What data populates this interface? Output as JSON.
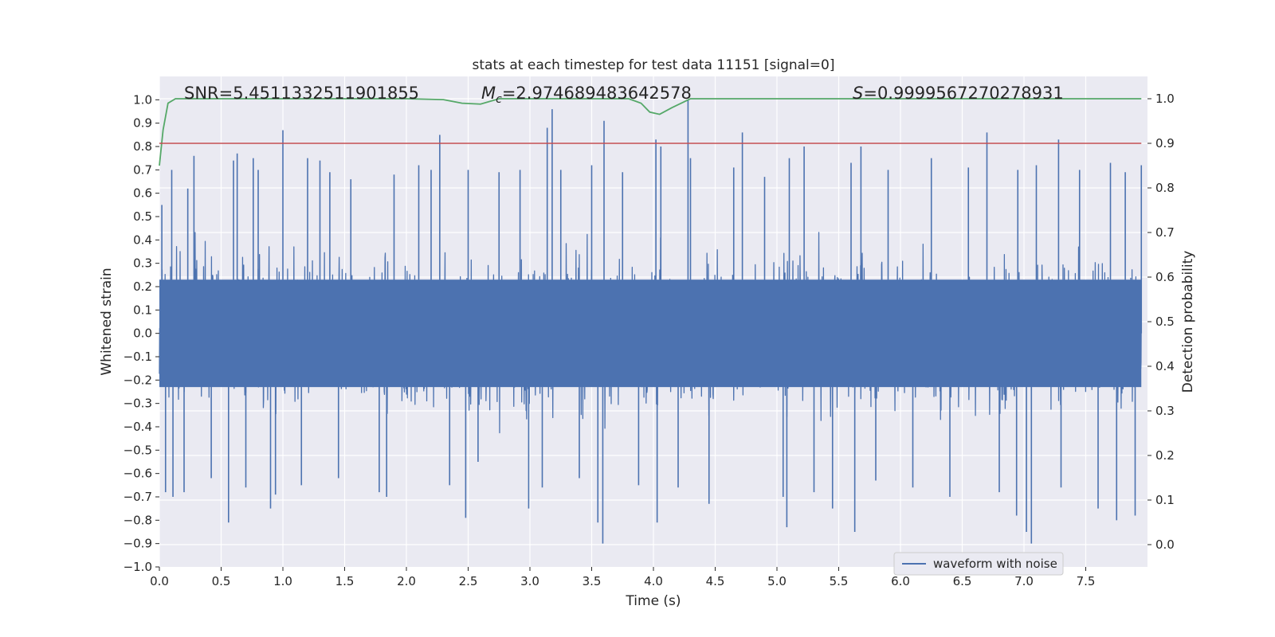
{
  "chart_data": {
    "type": "line",
    "title": "stats at each timestep for test data 11151 [signal=0]",
    "xlabel": "Time (s)",
    "ylabel": "Whitened strain",
    "y2label": "Detection probability",
    "xlim": [
      0,
      8
    ],
    "ylim": [
      -1.0,
      1.1
    ],
    "y2lim": [
      -0.05,
      1.05
    ],
    "x_ticks": [
      "0.0",
      "0.5",
      "1.0",
      "1.5",
      "2.0",
      "2.5",
      "3.0",
      "3.5",
      "4.0",
      "4.5",
      "5.0",
      "5.5",
      "6.0",
      "6.5",
      "7.0",
      "7.5"
    ],
    "y_ticks": [
      "1.0",
      "0.9",
      "0.8",
      "0.7",
      "0.6",
      "0.5",
      "0.4",
      "0.3",
      "0.2",
      "0.1",
      "0.0",
      "−0.1",
      "−0.2",
      "−0.3",
      "−0.4",
      "−0.5",
      "−0.6",
      "−0.7",
      "−0.8",
      "−0.9",
      "−1.0"
    ],
    "y2_ticks": [
      "1.0",
      "0.9",
      "0.8",
      "0.7",
      "0.6",
      "0.5",
      "0.4",
      "0.3",
      "0.2",
      "0.1",
      "0.0"
    ],
    "annotations": {
      "snr": "SNR=5.4511332511901855",
      "mc_symbol": "M",
      "mc_sub": "c",
      "mc_value": "=2.974689483642578",
      "s_symbol": "S",
      "s_value": "=0.9999567270278931"
    },
    "threshold": 0.9,
    "legend": {
      "label": "waveform with noise",
      "placement": "lower-right"
    },
    "series": [
      {
        "name": "waveform with noise",
        "axis": "left",
        "color": "#4c72b0",
        "envelope": "dense noise, roughly ±0.45 with spikes",
        "spikes": [
          {
            "x": 0.02,
            "y": 0.55
          },
          {
            "x": 0.05,
            "y": -0.68
          },
          {
            "x": 0.1,
            "y": 0.7
          },
          {
            "x": 0.11,
            "y": -0.7
          },
          {
            "x": 0.2,
            "y": -0.68
          },
          {
            "x": 0.23,
            "y": 0.62
          },
          {
            "x": 0.28,
            "y": 0.76
          },
          {
            "x": 0.42,
            "y": -0.62
          },
          {
            "x": 0.56,
            "y": -0.81
          },
          {
            "x": 0.6,
            "y": 0.74
          },
          {
            "x": 0.63,
            "y": 0.77
          },
          {
            "x": 0.7,
            "y": -0.66
          },
          {
            "x": 0.76,
            "y": 0.75
          },
          {
            "x": 0.8,
            "y": 0.7
          },
          {
            "x": 0.9,
            "y": -0.75
          },
          {
            "x": 0.94,
            "y": -0.69
          },
          {
            "x": 1.0,
            "y": 0.87
          },
          {
            "x": 1.15,
            "y": -0.65
          },
          {
            "x": 1.2,
            "y": 0.75
          },
          {
            "x": 1.3,
            "y": 0.74
          },
          {
            "x": 1.38,
            "y": 0.69
          },
          {
            "x": 1.45,
            "y": -0.62
          },
          {
            "x": 1.55,
            "y": 0.66
          },
          {
            "x": 1.78,
            "y": -0.68
          },
          {
            "x": 1.84,
            "y": -0.7
          },
          {
            "x": 1.9,
            "y": 0.68
          },
          {
            "x": 2.1,
            "y": 0.72
          },
          {
            "x": 2.2,
            "y": 0.7
          },
          {
            "x": 2.27,
            "y": 0.85
          },
          {
            "x": 2.35,
            "y": -0.65
          },
          {
            "x": 2.48,
            "y": -0.79
          },
          {
            "x": 2.5,
            "y": 0.7
          },
          {
            "x": 2.58,
            "y": -0.55
          },
          {
            "x": 2.75,
            "y": 0.69
          },
          {
            "x": 2.92,
            "y": 0.7
          },
          {
            "x": 2.99,
            "y": -0.75
          },
          {
            "x": 3.1,
            "y": -0.66
          },
          {
            "x": 3.14,
            "y": 0.88
          },
          {
            "x": 3.18,
            "y": 0.96
          },
          {
            "x": 3.25,
            "y": 0.7
          },
          {
            "x": 3.4,
            "y": -0.62
          },
          {
            "x": 3.5,
            "y": 0.72
          },
          {
            "x": 3.55,
            "y": -0.81
          },
          {
            "x": 3.59,
            "y": -0.9
          },
          {
            "x": 3.6,
            "y": 0.91
          },
          {
            "x": 3.75,
            "y": 0.69
          },
          {
            "x": 3.88,
            "y": -0.65
          },
          {
            "x": 4.02,
            "y": 0.83
          },
          {
            "x": 4.03,
            "y": -0.81
          },
          {
            "x": 4.06,
            "y": 0.8
          },
          {
            "x": 4.2,
            "y": -0.66
          },
          {
            "x": 4.28,
            "y": 1.0
          },
          {
            "x": 4.3,
            "y": 0.75
          },
          {
            "x": 4.45,
            "y": -0.73
          },
          {
            "x": 4.65,
            "y": 0.71
          },
          {
            "x": 4.72,
            "y": 0.86
          },
          {
            "x": 4.9,
            "y": 0.67
          },
          {
            "x": 5.05,
            "y": -0.7
          },
          {
            "x": 5.1,
            "y": 0.75
          },
          {
            "x": 5.08,
            "y": -0.83
          },
          {
            "x": 5.22,
            "y": 0.8
          },
          {
            "x": 5.3,
            "y": -0.68
          },
          {
            "x": 5.45,
            "y": -0.75
          },
          {
            "x": 5.6,
            "y": 0.73
          },
          {
            "x": 5.63,
            "y": -0.85
          },
          {
            "x": 5.68,
            "y": 0.8
          },
          {
            "x": 5.8,
            "y": -0.63
          },
          {
            "x": 5.9,
            "y": 0.7
          },
          {
            "x": 6.1,
            "y": -0.66
          },
          {
            "x": 6.25,
            "y": 0.75
          },
          {
            "x": 6.4,
            "y": -0.7
          },
          {
            "x": 6.55,
            "y": 0.71
          },
          {
            "x": 6.7,
            "y": 0.86
          },
          {
            "x": 6.8,
            "y": -0.68
          },
          {
            "x": 6.94,
            "y": -0.78
          },
          {
            "x": 6.95,
            "y": 0.7
          },
          {
            "x": 7.02,
            "y": -0.85
          },
          {
            "x": 7.06,
            "y": -0.9
          },
          {
            "x": 7.1,
            "y": 0.72
          },
          {
            "x": 7.28,
            "y": 0.83
          },
          {
            "x": 7.3,
            "y": -0.66
          },
          {
            "x": 7.45,
            "y": 0.7
          },
          {
            "x": 7.6,
            "y": -0.75
          },
          {
            "x": 7.7,
            "y": 0.73
          },
          {
            "x": 7.75,
            "y": -0.8
          },
          {
            "x": 7.82,
            "y": 0.69
          },
          {
            "x": 7.9,
            "y": -0.78
          },
          {
            "x": 7.95,
            "y": 0.72
          }
        ]
      },
      {
        "axis": "right",
        "color": "#55a868",
        "x": [
          0.0,
          0.03,
          0.07,
          0.13,
          0.3,
          0.6,
          1.0,
          1.5,
          2.0,
          2.3,
          2.45,
          2.6,
          2.75,
          3.0,
          3.4,
          3.8,
          3.9,
          3.97,
          4.05,
          4.15,
          4.3,
          4.5,
          5.0,
          6.0,
          7.0,
          7.95
        ],
        "y": [
          0.85,
          0.93,
          0.99,
          1.0,
          1.0,
          1.0,
          1.0,
          1.0,
          1.0,
          0.998,
          0.99,
          0.988,
          1.0,
          1.0,
          1.0,
          1.0,
          0.99,
          0.97,
          0.965,
          0.98,
          1.0,
          1.0,
          1.0,
          1.0,
          1.0,
          1.0
        ]
      },
      {
        "axis": "right",
        "color": "#c44e52",
        "x": [
          0.0,
          7.95
        ],
        "y": [
          0.9,
          0.9
        ]
      }
    ]
  }
}
